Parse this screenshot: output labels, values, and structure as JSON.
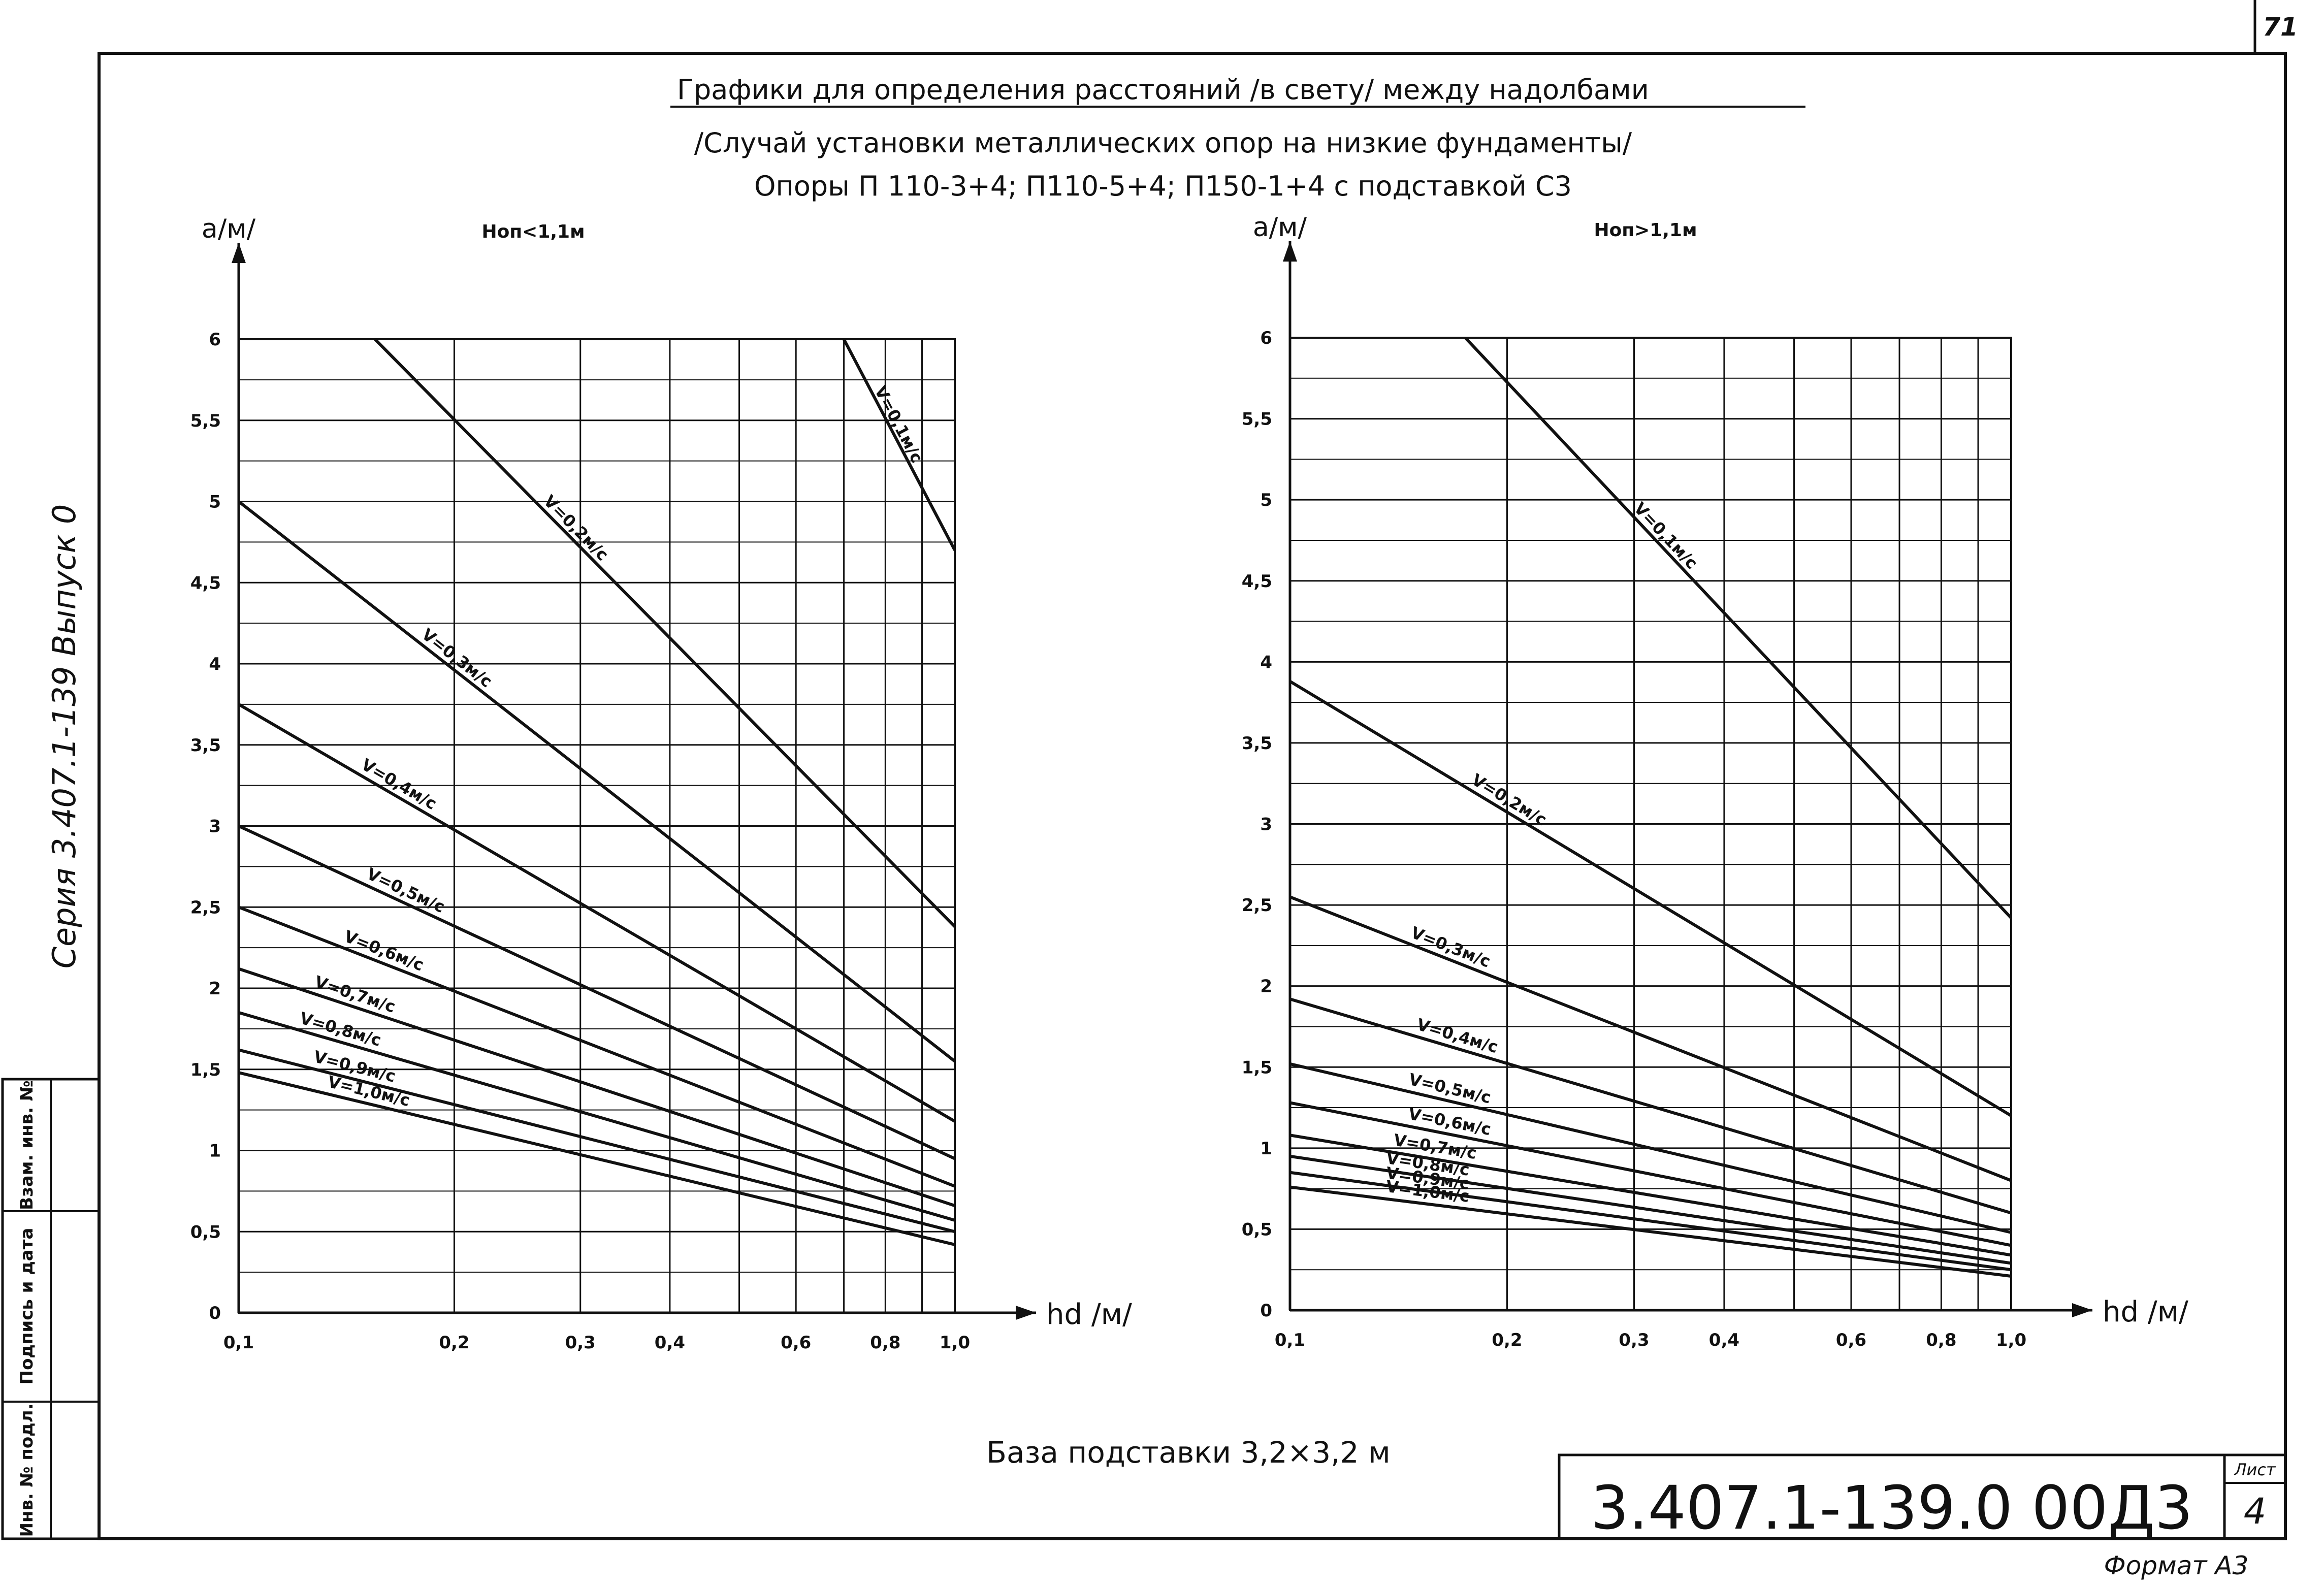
{
  "sheet": {
    "page_number": "71",
    "title_line1": "Графики для определения расстояний /в свету/ между надолбами",
    "title_line2": "/Случай установки металлических опор на низкие фундаменты/",
    "title_line3": "Опоры П 110-3+4; П110-5+4; П150-1+4 с подставкой С3",
    "base_caption": "База подставки 3,2×3,2 м",
    "doc_code": "3.407.1-139.0 00Д3",
    "sheet_label": "Лист",
    "sheet_no": "4",
    "format": "Формат А3",
    "side_vertical": "Серия 3.407.1-139 Выпуск 0",
    "stamp_fields": [
      "Взам. инв. №",
      "Подпись и дата",
      "Инв. № подл."
    ]
  },
  "chart_data": [
    {
      "type": "line",
      "note": "Hоп<1,1м",
      "ylabel": "а/м/",
      "xlabel": "hd /м/",
      "xscale": "log",
      "xlim": [
        0.1,
        1.0
      ],
      "ylim": [
        0,
        6
      ],
      "grid": true,
      "xticks": [
        {
          "v": 0.1,
          "t": "0,1"
        },
        {
          "v": 0.2,
          "t": "0,2"
        },
        {
          "v": 0.3,
          "t": "0,3"
        },
        {
          "v": 0.4,
          "t": "0,4"
        },
        {
          "v": 0.6,
          "t": "0,6"
        },
        {
          "v": 0.8,
          "t": "0,8"
        },
        {
          "v": 1.0,
          "t": "1,0"
        }
      ],
      "yticks": [
        {
          "v": 0,
          "t": "0"
        },
        {
          "v": 0.5,
          "t": "0,5"
        },
        {
          "v": 1,
          "t": "1"
        },
        {
          "v": 1.5,
          "t": "1,5"
        },
        {
          "v": 2,
          "t": "2"
        },
        {
          "v": 2.5,
          "t": "2,5"
        },
        {
          "v": 3,
          "t": "3"
        },
        {
          "v": 3.5,
          "t": "3,5"
        },
        {
          "v": 4,
          "t": "4"
        },
        {
          "v": 4.5,
          "t": "4,5"
        },
        {
          "v": 5,
          "t": "5"
        },
        {
          "v": 5.5,
          "t": "5,5"
        },
        {
          "v": 6,
          "t": "6"
        }
      ],
      "series": [
        {
          "name": "V=0,1м/с",
          "x": [
            0.7,
            1.0
          ],
          "y": [
            6.0,
            4.7
          ]
        },
        {
          "name": "V=0,2м/с",
          "x": [
            0.155,
            1.0
          ],
          "y": [
            6.0,
            2.38
          ]
        },
        {
          "name": "V=0,3м/с",
          "x": [
            0.1,
            1.0
          ],
          "y": [
            5.0,
            1.55
          ]
        },
        {
          "name": "V=0,4м/с",
          "x": [
            0.1,
            1.0
          ],
          "y": [
            3.75,
            1.18
          ]
        },
        {
          "name": "V=0,5м/с",
          "x": [
            0.1,
            1.0
          ],
          "y": [
            3.0,
            0.95
          ]
        },
        {
          "name": "V=0,6м/с",
          "x": [
            0.1,
            1.0
          ],
          "y": [
            2.5,
            0.78
          ]
        },
        {
          "name": "V=0,7м/с",
          "x": [
            0.1,
            1.0
          ],
          "y": [
            2.12,
            0.66
          ]
        },
        {
          "name": "V=0,8м/с",
          "x": [
            0.1,
            1.0
          ],
          "y": [
            1.85,
            0.57
          ]
        },
        {
          "name": "V=0,9м/с",
          "x": [
            0.1,
            1.0
          ],
          "y": [
            1.62,
            0.5
          ]
        },
        {
          "name": "V=1,0м/с",
          "x": [
            0.1,
            1.0
          ],
          "y": [
            1.48,
            0.42
          ]
        }
      ]
    },
    {
      "type": "line",
      "note": "Hоп>1,1м",
      "ylabel": "а/м/",
      "xlabel": "hd /м/",
      "xscale": "log",
      "xlim": [
        0.1,
        1.0
      ],
      "ylim": [
        0,
        6
      ],
      "grid": true,
      "xticks": [
        {
          "v": 0.1,
          "t": "0,1"
        },
        {
          "v": 0.2,
          "t": "0,2"
        },
        {
          "v": 0.3,
          "t": "0,3"
        },
        {
          "v": 0.4,
          "t": "0,4"
        },
        {
          "v": 0.6,
          "t": "0,6"
        },
        {
          "v": 0.8,
          "t": "0,8"
        },
        {
          "v": 1.0,
          "t": "1,0"
        }
      ],
      "yticks": [
        {
          "v": 0,
          "t": "0"
        },
        {
          "v": 0.5,
          "t": "0,5"
        },
        {
          "v": 1,
          "t": "1"
        },
        {
          "v": 1.5,
          "t": "1,5"
        },
        {
          "v": 2,
          "t": "2"
        },
        {
          "v": 2.5,
          "t": "2,5"
        },
        {
          "v": 3,
          "t": "3"
        },
        {
          "v": 3.5,
          "t": "3,5"
        },
        {
          "v": 4,
          "t": "4"
        },
        {
          "v": 4.5,
          "t": "4,5"
        },
        {
          "v": 5,
          "t": "5"
        },
        {
          "v": 5.5,
          "t": "5,5"
        },
        {
          "v": 6,
          "t": "6"
        }
      ],
      "series": [
        {
          "name": "V=0,1м/с",
          "x": [
            0.175,
            1.0
          ],
          "y": [
            6.0,
            2.42
          ]
        },
        {
          "name": "V=0,2м/с",
          "x": [
            0.1,
            1.0
          ],
          "y": [
            3.88,
            1.2
          ]
        },
        {
          "name": "V=0,3м/с",
          "x": [
            0.1,
            1.0
          ],
          "y": [
            2.55,
            0.8
          ]
        },
        {
          "name": "V=0,4м/с",
          "x": [
            0.1,
            1.0
          ],
          "y": [
            1.92,
            0.6
          ]
        },
        {
          "name": "V=0,5м/с",
          "x": [
            0.1,
            1.0
          ],
          "y": [
            1.52,
            0.48
          ]
        },
        {
          "name": "V=0,6м/с",
          "x": [
            0.1,
            1.0
          ],
          "y": [
            1.28,
            0.4
          ]
        },
        {
          "name": "V=0,7м/с",
          "x": [
            0.1,
            1.0
          ],
          "y": [
            1.08,
            0.34
          ]
        },
        {
          "name": "V=0,8м/с",
          "x": [
            0.1,
            1.0
          ],
          "y": [
            0.95,
            0.29
          ]
        },
        {
          "name": "V=0,9м/с",
          "x": [
            0.1,
            1.0
          ],
          "y": [
            0.85,
            0.25
          ]
        },
        {
          "name": "V=1,0м/с",
          "x": [
            0.1,
            1.0
          ],
          "y": [
            0.76,
            0.21
          ]
        }
      ]
    }
  ]
}
